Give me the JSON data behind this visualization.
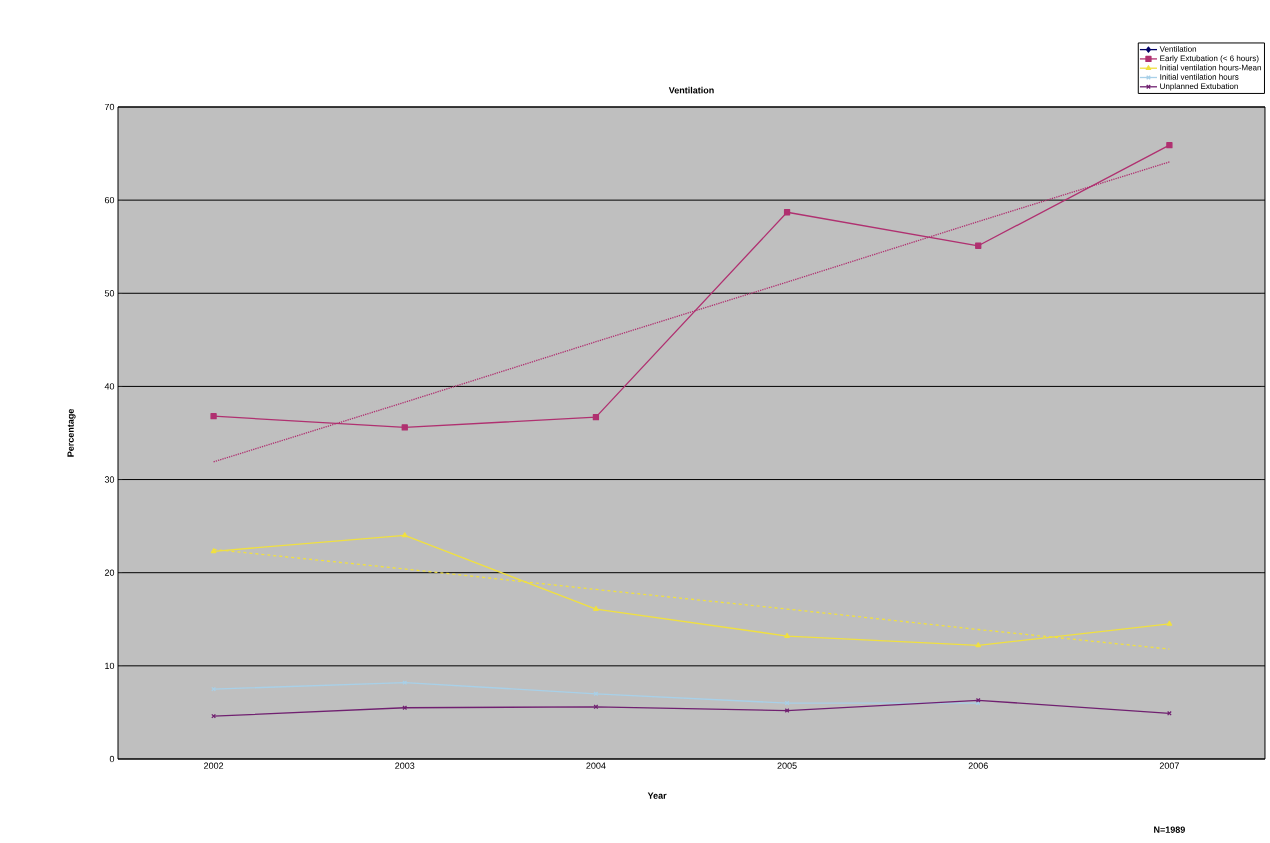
{
  "chart_data": {
    "type": "line",
    "title": "Ventilation",
    "xlabel": "Year",
    "ylabel": "Percentage",
    "categories": [
      "2002",
      "2003",
      "2004",
      "2005",
      "2006",
      "2007"
    ],
    "series": [
      {
        "name": "Ventilation",
        "color": "#000066",
        "marker": "diamond",
        "values": [
          null,
          null,
          null,
          null,
          null,
          null
        ]
      },
      {
        "name": "Early Extubation (< 6 hours)",
        "color": "#b03070",
        "marker": "square",
        "values": [
          36.8,
          35.6,
          36.7,
          58.7,
          55.1,
          65.9
        ]
      },
      {
        "name": "Initial ventilation hours-Mean",
        "color": "#f0e040",
        "marker": "triangle",
        "values": [
          22.3,
          24.0,
          16.1,
          13.2,
          12.2,
          14.5
        ]
      },
      {
        "name": "Initial ventilation hours",
        "color": "#a8d0e8",
        "marker": "cross",
        "values": [
          7.5,
          8.2,
          7.0,
          6.0,
          6.0,
          null
        ]
      },
      {
        "name": "Unplanned Extubation",
        "color": "#702070",
        "marker": "cross",
        "values": [
          4.6,
          5.5,
          5.6,
          5.2,
          6.3,
          4.9
        ]
      },
      {
        "type": "line",
        "color": "#b03070",
        "line_style": "dotted",
        "marker": "none",
        "values": [
          31.9,
          38.3,
          44.8,
          51.2,
          57.7,
          64.1
        ]
      },
      {
        "type": "line",
        "color": "#f0e040",
        "line_style": "dashed",
        "marker": "none",
        "values": [
          22.5,
          20.4,
          18.2,
          16.1,
          13.9,
          11.8
        ]
      }
    ],
    "ylim": [
      0,
      70
    ],
    "yticks": [
      0,
      10,
      20,
      30,
      40,
      50,
      60,
      70
    ],
    "grid": "y",
    "legend": "top right",
    "annotations": [
      "N=1989"
    ]
  }
}
